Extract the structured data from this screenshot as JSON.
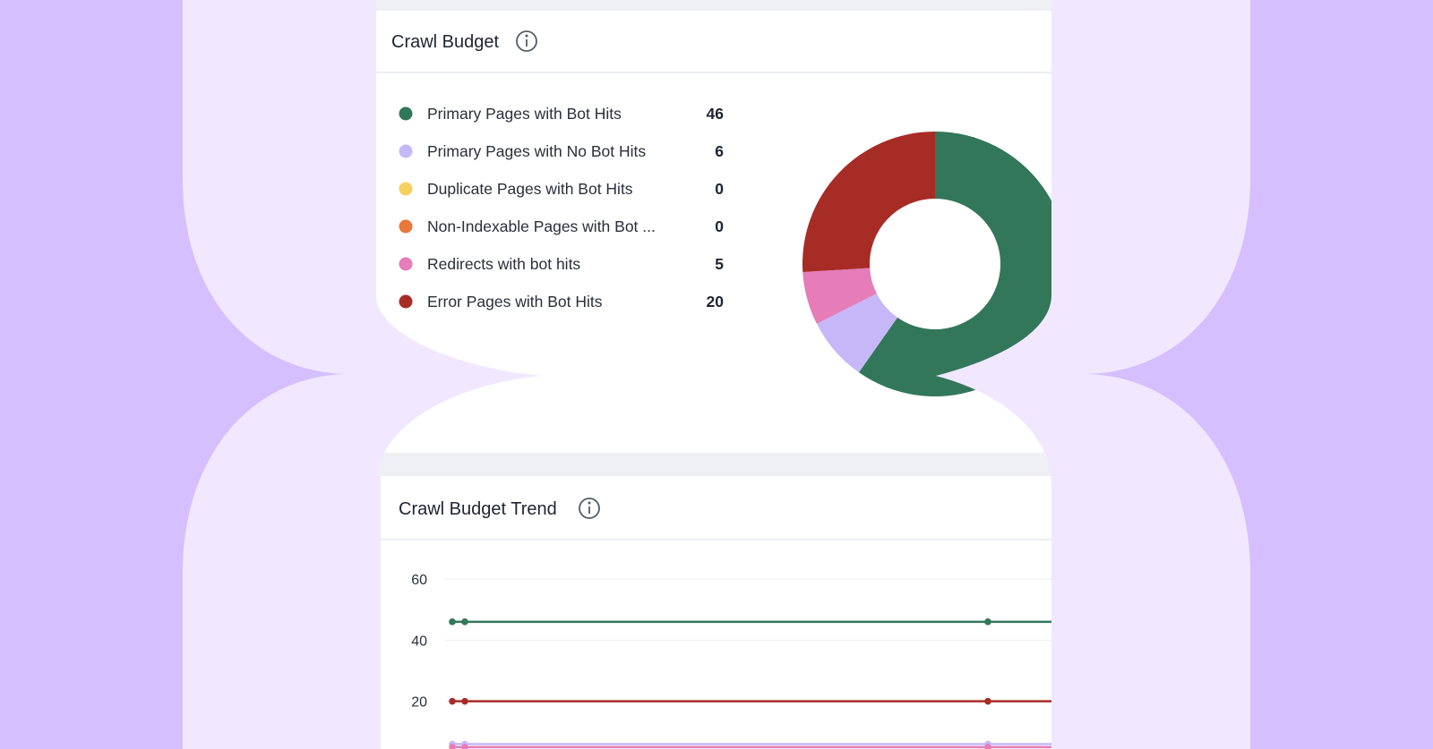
{
  "colors": {
    "page_bg": "#d5bfff",
    "shape_bg": "#f1e8ff",
    "card_bg": "#ffffff",
    "green": "#33775a",
    "lavender": "#c6b8f8",
    "yellow": "#f6d160",
    "orange": "#ea7838",
    "pink": "#e67cb8",
    "red": "#a82c26"
  },
  "crawl_budget": {
    "title": "Crawl Budget",
    "info_icon": "info-icon"
  },
  "trend": {
    "title": "Crawl Budget Trend",
    "info_icon": "info-icon"
  },
  "chart_data": [
    {
      "type": "pie",
      "title": "Crawl Budget",
      "labels": [
        "Primary Pages with Bot Hits",
        "Primary Pages with No Bot Hits",
        "Duplicate Pages with Bot Hits",
        "Non-Indexable Pages with Bot ...",
        "Redirects with bot hits",
        "Error Pages with Bot Hits"
      ],
      "values": [
        46,
        6,
        0,
        0,
        5,
        20
      ],
      "display_values": [
        "46",
        "6",
        "0",
        "0",
        "5",
        "20"
      ],
      "colors": [
        "#33775a",
        "#c6b8f8",
        "#f6d160",
        "#ea7838",
        "#e67cb8",
        "#a82c26"
      ],
      "donut": true
    },
    {
      "type": "line",
      "title": "Crawl Budget Trend",
      "yticks": [
        "60",
        "40",
        "20"
      ],
      "ylim": [
        0,
        60
      ],
      "series": [
        {
          "name": "Primary Pages with Bot Hits",
          "color": "#33775a",
          "value": 46
        },
        {
          "name": "Error Pages with Bot Hits",
          "color": "#a82c26",
          "value": 20
        },
        {
          "name": "Primary Pages with No Bot Hits",
          "color": "#c6b8f8",
          "value": 6
        },
        {
          "name": "Redirects with bot hits",
          "color": "#e67cb8",
          "value": 5
        }
      ]
    }
  ]
}
